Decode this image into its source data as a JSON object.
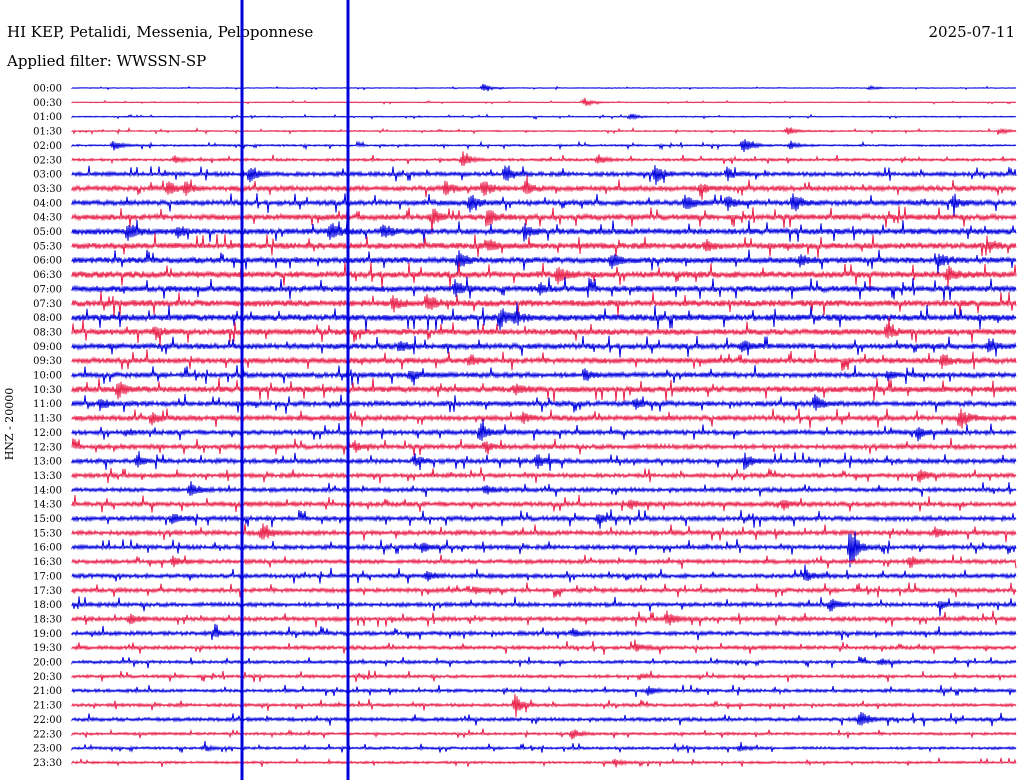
{
  "header": {
    "station": "HI KEP, Petalidi, Messenia, Peloponnese",
    "date": "2025-07-11",
    "filter": "Applied filter: WWSSN-SP"
  },
  "colors": {
    "trace_a": "#0000dd",
    "trace_b": "#e8204a",
    "text": "#000000"
  },
  "chart_data": {
    "type": "line",
    "title": "HI KEP, Petalidi, Messenia, Peloponnese",
    "subtitle": "Applied filter: WWSSN-SP",
    "ylabel": "HNZ - 20000",
    "xlabel": "",
    "rows": [
      {
        "label": "00:00",
        "noise": 0.3,
        "events": [
          [
            483,
            4
          ],
          [
            870,
            2
          ]
        ]
      },
      {
        "label": "00:30",
        "noise": 0.3,
        "events": [
          [
            585,
            4
          ]
        ]
      },
      {
        "label": "01:00",
        "noise": 0.4,
        "events": [
          [
            630,
            3
          ]
        ]
      },
      {
        "label": "01:30",
        "noise": 0.5,
        "events": [
          [
            787,
            4
          ],
          [
            1000,
            3
          ]
        ]
      },
      {
        "label": "02:00",
        "noise": 0.7,
        "events": [
          [
            113,
            5
          ],
          [
            743,
            8
          ],
          [
            790,
            4
          ]
        ]
      },
      {
        "label": "02:30",
        "noise": 1.0,
        "events": [
          [
            175,
            3
          ],
          [
            462,
            8
          ],
          [
            598,
            5
          ]
        ]
      },
      {
        "label": "03:00",
        "noise": 1.6,
        "events": [
          [
            250,
            7
          ],
          [
            505,
            9
          ],
          [
            655,
            10
          ],
          [
            727,
            6
          ]
        ]
      },
      {
        "label": "03:30",
        "noise": 2.0,
        "events": [
          [
            168,
            7
          ],
          [
            185,
            6
          ],
          [
            445,
            7
          ],
          [
            483,
            8
          ],
          [
            525,
            7
          ],
          [
            700,
            5
          ]
        ]
      },
      {
        "label": "04:00",
        "noise": 2.0,
        "events": [
          [
            470,
            8
          ],
          [
            685,
            8
          ],
          [
            727,
            7
          ],
          [
            793,
            10
          ],
          [
            953,
            6
          ]
        ]
      },
      {
        "label": "04:30",
        "noise": 2.2,
        "events": [
          [
            432,
            9
          ],
          [
            488,
            8
          ]
        ]
      },
      {
        "label": "05:00",
        "noise": 2.4,
        "events": [
          [
            128,
            8
          ],
          [
            178,
            6
          ],
          [
            330,
            8
          ],
          [
            383,
            7
          ],
          [
            525,
            6
          ]
        ]
      },
      {
        "label": "05:30",
        "noise": 2.4,
        "events": [
          [
            488,
            6
          ],
          [
            705,
            5
          ],
          [
            990,
            5
          ]
        ]
      },
      {
        "label": "06:00",
        "noise": 2.4,
        "events": [
          [
            458,
            9
          ],
          [
            612,
            7
          ],
          [
            800,
            6
          ],
          [
            938,
            7
          ]
        ]
      },
      {
        "label": "06:30",
        "noise": 2.6,
        "events": [
          [
            558,
            8
          ],
          [
            948,
            7
          ]
        ]
      },
      {
        "label": "07:00",
        "noise": 2.4,
        "events": [
          [
            455,
            8
          ],
          [
            540,
            5
          ]
        ]
      },
      {
        "label": "07:30",
        "noise": 2.6,
        "events": [
          [
            393,
            7
          ],
          [
            427,
            9
          ]
        ]
      },
      {
        "label": "08:00",
        "noise": 2.6,
        "events": [
          [
            500,
            10
          ],
          [
            515,
            6
          ]
        ]
      },
      {
        "label": "08:30",
        "noise": 2.4,
        "events": [
          [
            155,
            6
          ],
          [
            887,
            6
          ]
        ]
      },
      {
        "label": "09:00",
        "noise": 2.2,
        "events": [
          [
            400,
            5
          ],
          [
            742,
            7
          ],
          [
            988,
            6
          ]
        ]
      },
      {
        "label": "09:30",
        "noise": 2.2,
        "events": [
          [
            470,
            5
          ],
          [
            942,
            7
          ]
        ]
      },
      {
        "label": "10:00",
        "noise": 2.0,
        "events": [
          [
            410,
            6
          ],
          [
            585,
            6
          ],
          [
            888,
            5
          ]
        ]
      },
      {
        "label": "10:30",
        "noise": 2.4,
        "events": [
          [
            118,
            9
          ],
          [
            515,
            5
          ]
        ]
      },
      {
        "label": "11:00",
        "noise": 2.0,
        "events": [
          [
            100,
            5
          ],
          [
            635,
            6
          ],
          [
            815,
            8
          ]
        ]
      },
      {
        "label": "11:30",
        "noise": 2.0,
        "events": [
          [
            152,
            6
          ],
          [
            523,
            5
          ],
          [
            960,
            11
          ]
        ]
      },
      {
        "label": "12:00",
        "noise": 1.8,
        "events": [
          [
            126,
            3
          ],
          [
            480,
            9
          ],
          [
            918,
            7
          ]
        ]
      },
      {
        "label": "12:30",
        "noise": 1.8,
        "events": [
          [
            355,
            5
          ],
          [
            485,
            5
          ]
        ]
      },
      {
        "label": "13:00",
        "noise": 1.8,
        "events": [
          [
            137,
            6
          ],
          [
            415,
            6
          ],
          [
            537,
            8
          ],
          [
            745,
            7
          ]
        ]
      },
      {
        "label": "13:30",
        "noise": 1.6,
        "events": [
          [
            920,
            8
          ]
        ]
      },
      {
        "label": "14:00",
        "noise": 1.6,
        "events": [
          [
            190,
            8
          ],
          [
            485,
            5
          ]
        ]
      },
      {
        "label": "14:30",
        "noise": 1.8,
        "events": [
          [
            630,
            5
          ],
          [
            783,
            5
          ]
        ]
      },
      {
        "label": "15:00",
        "noise": 1.8,
        "events": [
          [
            172,
            5
          ],
          [
            598,
            5
          ]
        ]
      },
      {
        "label": "15:30",
        "noise": 1.8,
        "events": [
          [
            262,
            8
          ],
          [
            935,
            5
          ]
        ]
      },
      {
        "label": "16:00",
        "noise": 1.6,
        "events": [
          [
            422,
            5
          ],
          [
            850,
            22
          ]
        ]
      },
      {
        "label": "16:30",
        "noise": 1.6,
        "events": [
          [
            173,
            5
          ],
          [
            910,
            6
          ]
        ]
      },
      {
        "label": "17:00",
        "noise": 1.6,
        "events": [
          [
            427,
            5
          ],
          [
            805,
            6
          ]
        ]
      },
      {
        "label": "17:30",
        "noise": 1.6,
        "events": [
          [
            475,
            4
          ]
        ]
      },
      {
        "label": "18:00",
        "noise": 1.6,
        "events": [
          [
            830,
            6
          ],
          [
            940,
            4
          ]
        ]
      },
      {
        "label": "18:30",
        "noise": 1.6,
        "events": [
          [
            130,
            5
          ],
          [
            667,
            8
          ]
        ]
      },
      {
        "label": "19:00",
        "noise": 1.6,
        "events": [
          [
            215,
            4
          ],
          [
            573,
            4
          ]
        ]
      },
      {
        "label": "19:30",
        "noise": 1.4,
        "events": [
          [
            635,
            4
          ]
        ]
      },
      {
        "label": "20:00",
        "noise": 1.2,
        "events": [
          [
            880,
            3
          ]
        ]
      },
      {
        "label": "20:30",
        "noise": 1.2,
        "events": [
          [
            640,
            3
          ]
        ]
      },
      {
        "label": "21:00",
        "noise": 1.2,
        "events": [
          [
            648,
            4
          ]
        ]
      },
      {
        "label": "21:30",
        "noise": 1.2,
        "events": [
          [
            515,
            10
          ]
        ]
      },
      {
        "label": "22:00",
        "noise": 1.4,
        "events": [
          [
            860,
            9
          ]
        ]
      },
      {
        "label": "22:30",
        "noise": 1.0,
        "events": [
          [
            572,
            5
          ]
        ]
      },
      {
        "label": "23:00",
        "noise": 1.0,
        "events": [
          [
            205,
            3
          ],
          [
            740,
            3
          ]
        ]
      },
      {
        "label": "23:30",
        "noise": 0.9,
        "events": [
          [
            615,
            3
          ]
        ]
      }
    ],
    "spikes": [
      {
        "x": 241,
        "from_row": 0,
        "to_row": 47,
        "width": 3
      },
      {
        "x": 347,
        "from_row": 0,
        "to_row": 47,
        "width": 3
      }
    ]
  }
}
